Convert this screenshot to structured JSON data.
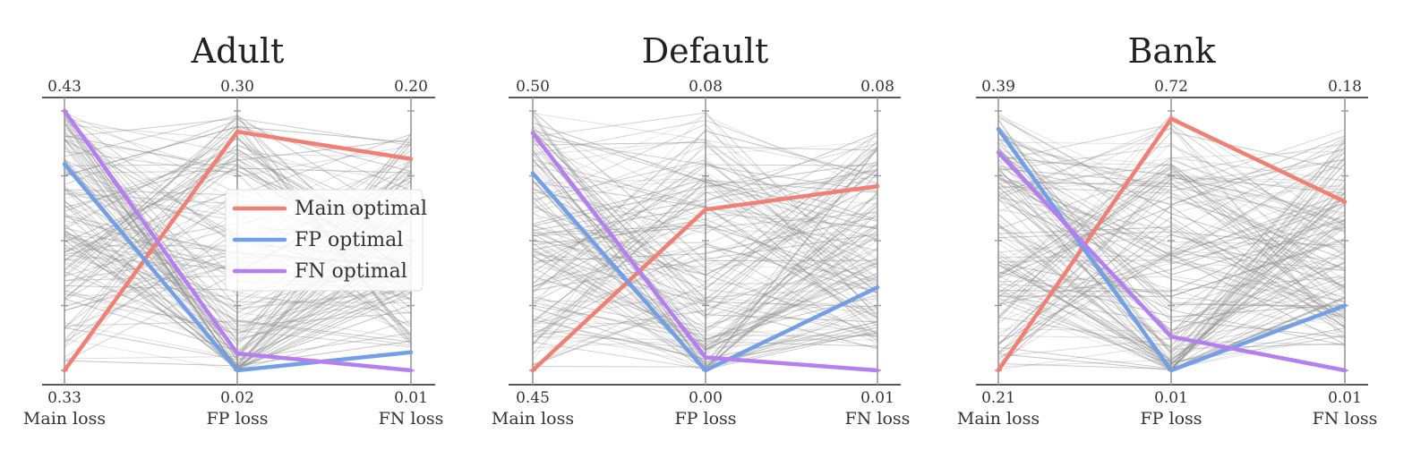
{
  "chart_data": [
    {
      "type": "parallel_coordinates",
      "title": "Adult",
      "axes": [
        {
          "label": "Main loss",
          "top": "0.43",
          "bottom": "0.33"
        },
        {
          "label": "FP loss",
          "top": "0.30",
          "bottom": "0.02"
        },
        {
          "label": "FN loss",
          "top": "0.20",
          "bottom": "0.01"
        }
      ],
      "series": [
        {
          "name": "Main optimal",
          "color": "#f07f74",
          "values": [
            0.0,
            0.92,
            0.815
          ]
        },
        {
          "name": "FP optimal",
          "color": "#739fe6",
          "values": [
            0.795,
            0.0,
            0.07
          ]
        },
        {
          "name": "FN optimal",
          "color": "#b57ff0",
          "values": [
            1.0,
            0.065,
            0.0
          ]
        }
      ],
      "background": {
        "color": "#8c8c8c",
        "count": 150,
        "seed": 11
      },
      "legend": "center"
    },
    {
      "type": "parallel_coordinates",
      "title": "Default",
      "axes": [
        {
          "label": "Main loss",
          "top": "0.50",
          "bottom": "0.45"
        },
        {
          "label": "FP loss",
          "top": "0.08",
          "bottom": "0.00"
        },
        {
          "label": "FN loss",
          "top": "0.08",
          "bottom": "0.01"
        }
      ],
      "series": [
        {
          "name": "Main optimal",
          "color": "#f07f74",
          "values": [
            0.0,
            0.62,
            0.71
          ]
        },
        {
          "name": "FP optimal",
          "color": "#739fe6",
          "values": [
            0.76,
            0.0,
            0.32
          ]
        },
        {
          "name": "FN optimal",
          "color": "#b57ff0",
          "values": [
            0.915,
            0.05,
            0.0
          ]
        }
      ],
      "background": {
        "color": "#8c8c8c",
        "count": 150,
        "seed": 23
      }
    },
    {
      "type": "parallel_coordinates",
      "title": "Bank",
      "axes": [
        {
          "label": "Main loss",
          "top": "0.39",
          "bottom": "0.21"
        },
        {
          "label": "FP loss",
          "top": "0.72",
          "bottom": "0.01"
        },
        {
          "label": "FN loss",
          "top": "0.18",
          "bottom": "0.01"
        }
      ],
      "series": [
        {
          "name": "Main optimal",
          "color": "#f07f74",
          "values": [
            0.0,
            0.97,
            0.65
          ]
        },
        {
          "name": "FP optimal",
          "color": "#739fe6",
          "values": [
            0.93,
            0.0,
            0.25
          ]
        },
        {
          "name": "FN optimal",
          "color": "#b57ff0",
          "values": [
            0.84,
            0.13,
            0.0
          ]
        }
      ],
      "background": {
        "color": "#8c8c8c",
        "count": 150,
        "seed": 37
      }
    }
  ],
  "legend": {
    "items": [
      {
        "label": "Main optimal",
        "color": "#f07f74"
      },
      {
        "label": "FP optimal",
        "color": "#739fe6"
      },
      {
        "label": "FN optimal",
        "color": "#b57ff0"
      }
    ]
  }
}
